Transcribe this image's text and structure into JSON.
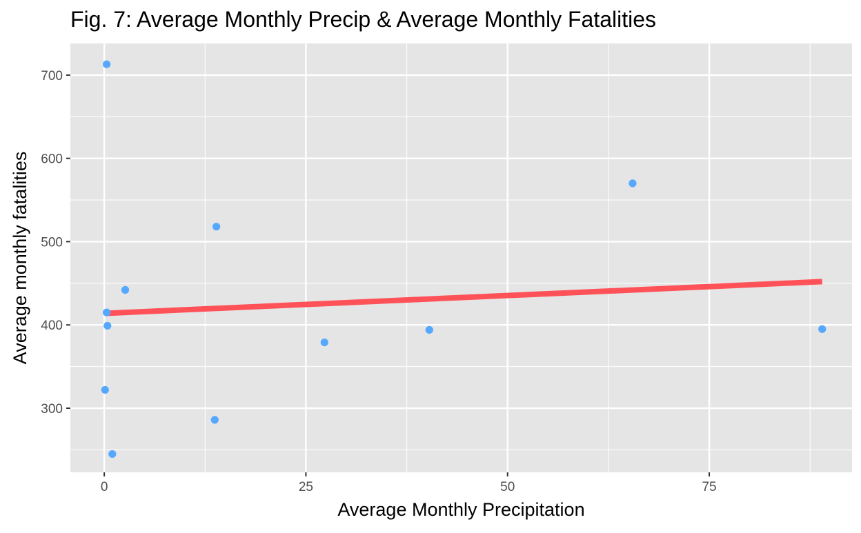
{
  "chart_data": {
    "type": "scatter",
    "title": "Fig. 7: Average Monthly Precip & Average Monthly Fatalities",
    "xlabel": "Average Monthly Precipitation",
    "ylabel": "Average monthly fatalities",
    "xlim": [
      -4.2,
      92.7
    ],
    "ylim": [
      223,
      738
    ],
    "xticks": [
      0,
      25,
      50,
      75
    ],
    "yticks": [
      300,
      400,
      500,
      600,
      700
    ],
    "grid": true,
    "legend": "none",
    "colors": {
      "panel_background": "#e5e5e5",
      "grid": "#ffffff",
      "points": "#56a8ff",
      "trend_line": "#ff5258"
    },
    "points": [
      {
        "x": 0.3,
        "y": 713
      },
      {
        "x": 0.1,
        "y": 322
      },
      {
        "x": 0.3,
        "y": 415
      },
      {
        "x": 0.4,
        "y": 399
      },
      {
        "x": 1.0,
        "y": 245
      },
      {
        "x": 2.6,
        "y": 442
      },
      {
        "x": 13.7,
        "y": 286
      },
      {
        "x": 13.9,
        "y": 518
      },
      {
        "x": 27.3,
        "y": 379
      },
      {
        "x": 40.3,
        "y": 394
      },
      {
        "x": 65.5,
        "y": 570
      },
      {
        "x": 89.0,
        "y": 395
      }
    ],
    "trend_line": {
      "x": [
        0.3,
        89.0
      ],
      "y": [
        414,
        452
      ]
    }
  }
}
